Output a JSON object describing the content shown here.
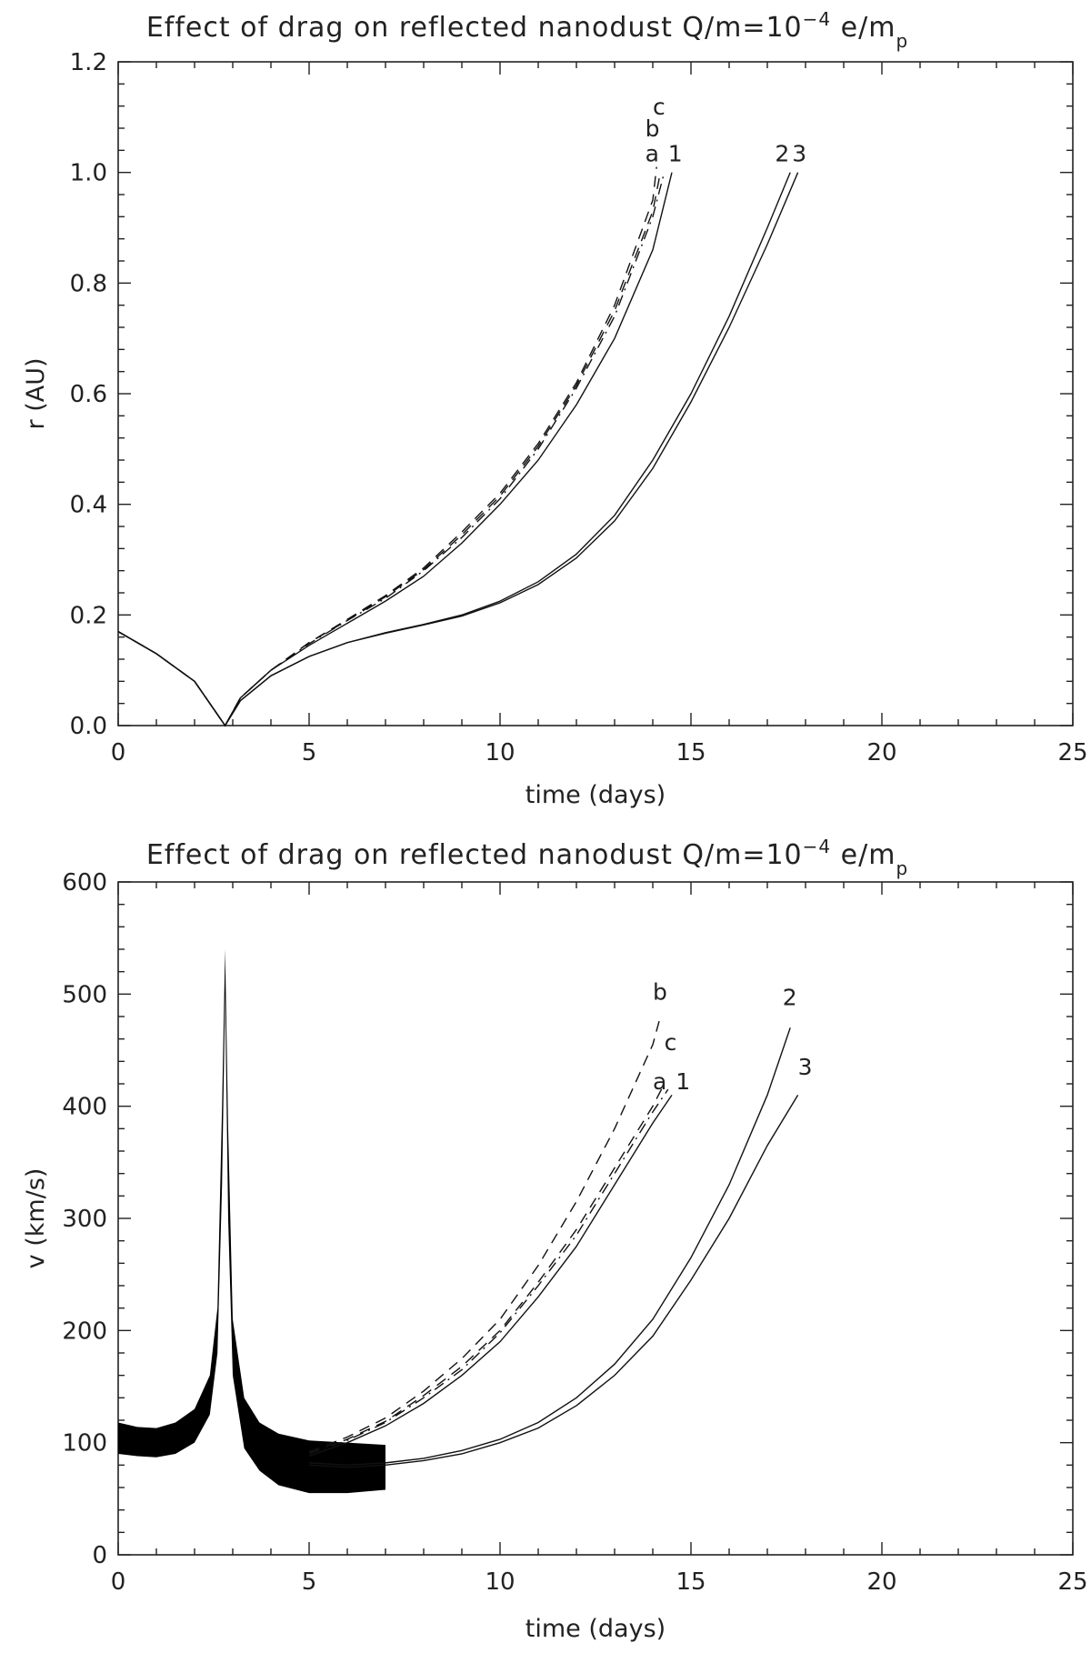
{
  "chart_data": [
    {
      "type": "line",
      "title": {
        "main": "Effect of drag on reflected nanodust Q/m=10",
        "exp": "−4",
        "unit": " e/m",
        "sub": "p"
      },
      "xlabel": "time (days)",
      "ylabel": "r (AU)",
      "xlim": [
        0,
        25
      ],
      "ylim": [
        0,
        1.2
      ],
      "xticks": [
        0,
        5,
        10,
        15,
        20,
        25
      ],
      "xtick_labels": [
        "0",
        "5",
        "10",
        "15",
        "20",
        "25"
      ],
      "yticks": [
        0,
        0.2,
        0.4,
        0.6,
        0.8,
        1.0,
        1.2
      ],
      "ytick_labels": [
        "0.0",
        "0.2",
        "0.4",
        "0.6",
        "0.8",
        "1.0",
        "1.2"
      ],
      "grid": false,
      "series": [
        {
          "name": "1",
          "style": "solid",
          "x": [
            0,
            1,
            2,
            2.8,
            3.2,
            4,
            5,
            6,
            7,
            8,
            9,
            10,
            11,
            12,
            13,
            14,
            14.5
          ],
          "y": [
            0.17,
            0.13,
            0.08,
            0.0,
            0.05,
            0.1,
            0.145,
            0.185,
            0.225,
            0.27,
            0.33,
            0.4,
            0.48,
            0.58,
            0.7,
            0.86,
            1.0
          ]
        },
        {
          "name": "a",
          "style": "dashdot",
          "x": [
            0,
            1,
            2,
            2.8,
            3.2,
            4,
            5,
            6,
            7,
            8,
            9,
            10,
            11,
            12,
            13,
            14,
            14.3
          ],
          "y": [
            0.17,
            0.13,
            0.08,
            0.0,
            0.05,
            0.1,
            0.148,
            0.19,
            0.23,
            0.28,
            0.34,
            0.41,
            0.5,
            0.61,
            0.74,
            0.92,
            1.0
          ]
        },
        {
          "name": "b",
          "style": "dashed",
          "x": [
            0,
            1,
            2,
            2.8,
            3.2,
            4,
            5,
            6,
            7,
            8,
            9,
            10,
            11,
            12,
            13,
            14,
            14.1
          ],
          "y": [
            0.17,
            0.13,
            0.08,
            0.0,
            0.05,
            0.1,
            0.15,
            0.192,
            0.235,
            0.285,
            0.35,
            0.42,
            0.51,
            0.62,
            0.76,
            0.95,
            1.01
          ]
        },
        {
          "name": "c",
          "style": "dashed",
          "x": [
            0,
            1,
            2,
            2.8,
            3.2,
            4,
            5,
            6,
            7,
            8,
            9,
            10,
            11,
            12,
            13,
            14,
            14.2
          ],
          "y": [
            0.17,
            0.13,
            0.08,
            0.0,
            0.05,
            0.1,
            0.15,
            0.19,
            0.233,
            0.282,
            0.345,
            0.415,
            0.505,
            0.615,
            0.75,
            0.93,
            1.0
          ]
        },
        {
          "name": "2",
          "style": "solid",
          "x": [
            0,
            1,
            2,
            2.8,
            3.2,
            4,
            5,
            6,
            7,
            8,
            9,
            10,
            11,
            12,
            13,
            14,
            15,
            16,
            17,
            17.6
          ],
          "y": [
            0.17,
            0.13,
            0.08,
            0.0,
            0.045,
            0.09,
            0.125,
            0.15,
            0.168,
            0.183,
            0.2,
            0.225,
            0.26,
            0.31,
            0.38,
            0.48,
            0.6,
            0.74,
            0.9,
            1.0
          ]
        },
        {
          "name": "3",
          "style": "solid",
          "x": [
            0,
            1,
            2,
            2.8,
            3.2,
            4,
            5,
            6,
            7,
            8,
            9,
            10,
            11,
            12,
            13,
            14,
            15,
            16,
            17,
            17.8
          ],
          "y": [
            0.17,
            0.13,
            0.08,
            0.0,
            0.045,
            0.09,
            0.125,
            0.15,
            0.167,
            0.182,
            0.198,
            0.222,
            0.255,
            0.303,
            0.37,
            0.465,
            0.585,
            0.72,
            0.87,
            1.0
          ]
        }
      ],
      "curve_labels": [
        {
          "text": "c",
          "x": 14.0,
          "y": 1.105
        },
        {
          "text": "b",
          "x": 13.8,
          "y": 1.065
        },
        {
          "text": "a",
          "x": 13.8,
          "y": 1.02
        },
        {
          "text": "1",
          "x": 14.4,
          "y": 1.02
        },
        {
          "text": "2",
          "x": 17.2,
          "y": 1.02
        },
        {
          "text": "3",
          "x": 17.65,
          "y": 1.02
        }
      ]
    },
    {
      "type": "line",
      "title": {
        "main": "Effect of drag on reflected nanodust Q/m=10",
        "exp": "−4",
        "unit": " e/m",
        "sub": "p"
      },
      "xlabel": "time (days)",
      "ylabel": "v (km/s)",
      "xlim": [
        0,
        25
      ],
      "ylim": [
        0,
        600
      ],
      "xticks": [
        0,
        5,
        10,
        15,
        20,
        25
      ],
      "xtick_labels": [
        "0",
        "5",
        "10",
        "15",
        "20",
        "25"
      ],
      "yticks": [
        0,
        100,
        200,
        300,
        400,
        500,
        600
      ],
      "ytick_labels": [
        "0",
        "100",
        "200",
        "300",
        "400",
        "500",
        "600"
      ],
      "grid": false,
      "oscillation_band": {
        "x": [
          0,
          0.5,
          1,
          1.5,
          2,
          2.4,
          2.6,
          2.72,
          2.8,
          2.88,
          3.0,
          3.3,
          3.7,
          4.2,
          5,
          6,
          7
        ],
        "upper": [
          118,
          114,
          113,
          118,
          130,
          160,
          220,
          400,
          540,
          380,
          210,
          140,
          118,
          108,
          102,
          100,
          98
        ],
        "lower": [
          90,
          88,
          87,
          90,
          100,
          125,
          180,
          330,
          500,
          300,
          160,
          95,
          75,
          62,
          55,
          55,
          58
        ]
      },
      "series": [
        {
          "name": "1",
          "style": "solid",
          "x": [
            5,
            6,
            7,
            8,
            9,
            10,
            11,
            12,
            13,
            14,
            14.5
          ],
          "y": [
            88,
            100,
            115,
            135,
            160,
            190,
            230,
            275,
            330,
            385,
            410
          ]
        },
        {
          "name": "a",
          "style": "dashdot",
          "x": [
            5,
            6,
            7,
            8,
            9,
            10,
            11,
            12,
            13,
            14,
            14.4
          ],
          "y": [
            90,
            102,
            118,
            140,
            165,
            198,
            240,
            285,
            340,
            395,
            415
          ]
        },
        {
          "name": "b",
          "style": "dashed",
          "x": [
            5,
            6,
            7,
            8,
            9,
            10,
            11,
            12,
            13,
            14,
            14.2
          ],
          "y": [
            92,
            105,
            122,
            146,
            175,
            210,
            258,
            315,
            380,
            455,
            480
          ]
        },
        {
          "name": "c",
          "style": "dashed",
          "x": [
            5,
            6,
            7,
            8,
            9,
            10,
            11,
            12,
            13,
            14,
            14.3
          ],
          "y": [
            91,
            103,
            119,
            142,
            168,
            200,
            243,
            290,
            345,
            400,
            420
          ]
        },
        {
          "name": "2",
          "style": "solid",
          "x": [
            5,
            6,
            7,
            8,
            9,
            10,
            11,
            12,
            13,
            14,
            15,
            16,
            17,
            17.6
          ],
          "y": [
            82,
            80,
            82,
            86,
            93,
            103,
            118,
            140,
            170,
            210,
            265,
            330,
            410,
            470
          ]
        },
        {
          "name": "3",
          "style": "solid",
          "x": [
            5,
            6,
            7,
            8,
            9,
            10,
            11,
            12,
            13,
            14,
            15,
            16,
            17,
            17.8
          ],
          "y": [
            80,
            78,
            80,
            84,
            90,
            100,
            113,
            133,
            160,
            195,
            245,
            300,
            365,
            410
          ]
        }
      ],
      "curve_labels": [
        {
          "text": "b",
          "x": 14.0,
          "y": 495
        },
        {
          "text": "c",
          "x": 14.3,
          "y": 450
        },
        {
          "text": "a",
          "x": 14.0,
          "y": 415
        },
        {
          "text": "1",
          "x": 14.6,
          "y": 415
        },
        {
          "text": "2",
          "x": 17.4,
          "y": 490
        },
        {
          "text": "3",
          "x": 17.8,
          "y": 428
        }
      ]
    }
  ]
}
